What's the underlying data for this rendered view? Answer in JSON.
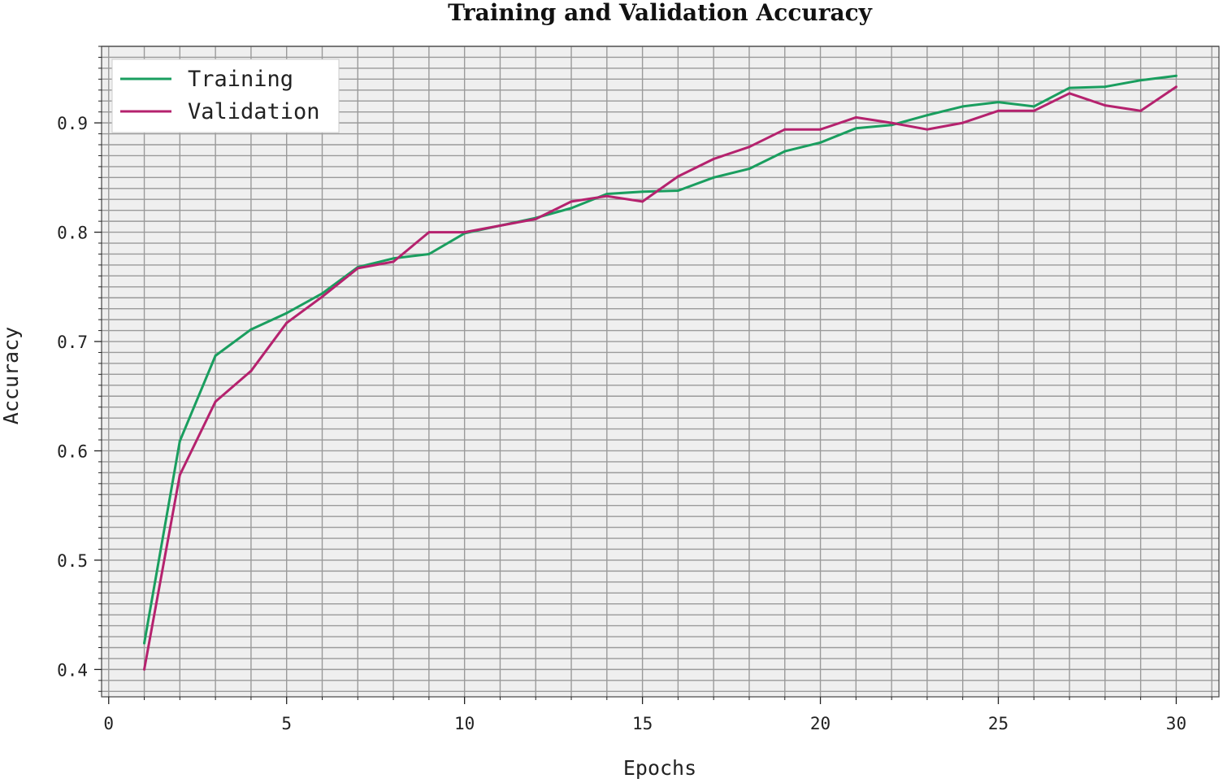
{
  "chart_data": {
    "type": "line",
    "title": "Training and Validation Accuracy",
    "xlabel": "Epochs",
    "ylabel": "Accuracy",
    "xlim": [
      -0.2,
      31.2
    ],
    "ylim": [
      0.375,
      0.97
    ],
    "xticks": [
      0,
      5,
      10,
      15,
      20,
      25,
      30
    ],
    "yticks": [
      0.4,
      0.5,
      0.6,
      0.7,
      0.8,
      0.9
    ],
    "xtick_labels": [
      "0",
      "5",
      "10",
      "15",
      "20",
      "25",
      "30"
    ],
    "ytick_labels": [
      "0.4",
      "0.5",
      "0.6",
      "0.7",
      "0.8",
      "0.9"
    ],
    "grid": true,
    "legend_position": "top-left",
    "x": [
      1,
      2,
      3,
      4,
      5,
      6,
      7,
      8,
      9,
      10,
      11,
      12,
      13,
      14,
      15,
      16,
      17,
      18,
      19,
      20,
      21,
      22,
      23,
      24,
      25,
      26,
      27,
      28,
      29,
      30
    ],
    "series": [
      {
        "name": "Training",
        "color": "#1a9e5f",
        "values": [
          0.424,
          0.609,
          0.687,
          0.711,
          0.726,
          0.744,
          0.768,
          0.776,
          0.78,
          0.799,
          0.806,
          0.813,
          0.822,
          0.835,
          0.837,
          0.838,
          0.85,
          0.858,
          0.874,
          0.882,
          0.895,
          0.898,
          0.907,
          0.915,
          0.919,
          0.915,
          0.932,
          0.933,
          0.939,
          0.943
        ]
      },
      {
        "name": "Validation",
        "color": "#b5226e",
        "values": [
          0.4,
          0.578,
          0.645,
          0.673,
          0.717,
          0.741,
          0.767,
          0.773,
          0.8,
          0.8,
          0.806,
          0.812,
          0.828,
          0.833,
          0.828,
          0.851,
          0.867,
          0.878,
          0.894,
          0.894,
          0.905,
          0.9,
          0.894,
          0.9,
          0.911,
          0.911,
          0.927,
          0.916,
          0.911,
          0.933
        ]
      }
    ]
  }
}
